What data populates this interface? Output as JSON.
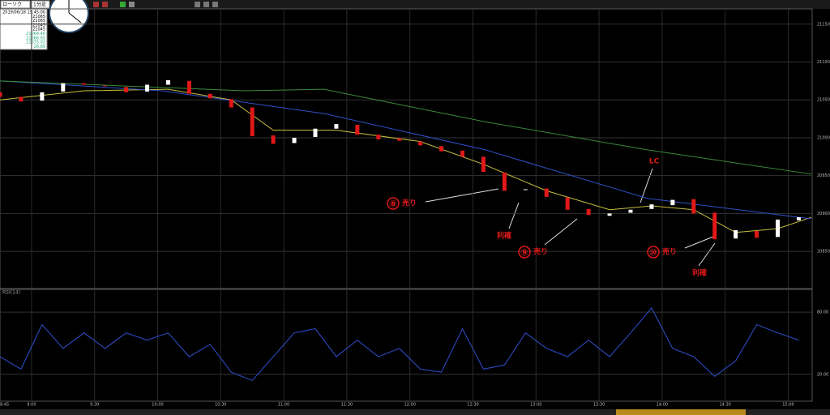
{
  "toolbar": {
    "chart_kind": "ローソク",
    "interval": "1分足"
  },
  "info": [
    "2019/06/18 15:45:00",
    "21065",
    "21065",
    "21045",
    "21045",
    "21064.40",
    "21066.65",
    "21075.02",
    "26.89"
  ],
  "chart_data": [
    {
      "type": "candlestick",
      "x": [
        0,
        10,
        20,
        30,
        40,
        50,
        60,
        70,
        80,
        90,
        100,
        110,
        120,
        130,
        140,
        150,
        160,
        170,
        180,
        190,
        200,
        210,
        220,
        230,
        240,
        250,
        260,
        270,
        280,
        290,
        300,
        310,
        320,
        330,
        340,
        350,
        360,
        370,
        380
      ],
      "open": [
        21060,
        21054,
        21049,
        21061,
        21072,
        21069,
        21067,
        21061,
        21070,
        21075,
        21058,
        21051,
        21040,
        21003,
        20993,
        21001,
        21012,
        21017,
        21004,
        20999,
        20995,
        20989,
        20983,
        20975,
        20954,
        20931,
        20933,
        20921,
        20906,
        20897,
        20901,
        20906,
        20911,
        20919,
        20901,
        20867,
        20877,
        20869,
        20891
      ],
      "close": [
        21054,
        21048,
        21060,
        21072,
        21070,
        21068,
        21060,
        21070,
        21076,
        21058,
        21052,
        21040,
        21002,
        20992,
        21000,
        21012,
        21018,
        21004,
        20998,
        20996,
        20990,
        20982,
        20975,
        20955,
        20930,
        20932,
        20922,
        20905,
        20898,
        20900,
        20905,
        20912,
        20918,
        20900,
        20866,
        20878,
        20868,
        20892,
        20895
      ],
      "up_color": "#ffffff",
      "down_color": "#e01818",
      "lines": [
        {
          "color": "#c8c040",
          "x": [
            0,
            40,
            80,
            110,
            130,
            160,
            200,
            230,
            260,
            290,
            310,
            330,
            350,
            370,
            386
          ],
          "values": [
            21050,
            21062,
            21064,
            21050,
            21010,
            21010,
            20995,
            20965,
            20930,
            20905,
            20910,
            20905,
            20875,
            20880,
            20895
          ]
        },
        {
          "color": "#3050c8",
          "x": [
            0,
            77,
            154,
            231,
            308,
            386
          ],
          "values": [
            21075,
            21062,
            21032,
            20984,
            20920,
            20893
          ]
        },
        {
          "color": "#3a8a3a",
          "x": [
            0,
            116,
            154,
            231,
            308,
            386
          ],
          "values": [
            21075,
            21062,
            21064,
            21021,
            20984,
            20952
          ]
        }
      ],
      "annotations": [
        {
          "number": "⑧",
          "text": "売り"
        },
        {
          "text": "利確"
        },
        {
          "number": "⑨",
          "text": "売り"
        },
        {
          "text": "LC"
        },
        {
          "number": "⑩",
          "text": "売り"
        },
        {
          "text": "利確"
        }
      ],
      "xlim": [
        0,
        386
      ],
      "xticks": [
        {
          "value": 0,
          "label": "8:45"
        },
        {
          "value": 15,
          "label": "9:00"
        },
        {
          "value": 45,
          "label": "9:30"
        },
        {
          "value": 75,
          "label": "10:00"
        },
        {
          "value": 105,
          "label": "10:30"
        },
        {
          "value": 135,
          "label": "11:00"
        },
        {
          "value": 165,
          "label": "11:30"
        },
        {
          "value": 195,
          "label": "12:00"
        },
        {
          "value": 225,
          "label": "12:30"
        },
        {
          "value": 255,
          "label": "13:00"
        },
        {
          "value": 285,
          "label": "13:30"
        },
        {
          "value": 315,
          "label": "14:00"
        },
        {
          "value": 345,
          "label": "14:30"
        },
        {
          "value": 375,
          "label": "15:00"
        }
      ],
      "ylim": [
        20802,
        21169
      ],
      "yticks": [
        21150,
        21100,
        21050,
        21000,
        20950,
        20900,
        20850
      ],
      "grid": true
    },
    {
      "type": "line",
      "title": "RSI(14)",
      "x": [
        0,
        10,
        20,
        30,
        40,
        50,
        60,
        70,
        80,
        90,
        100,
        110,
        120,
        130,
        140,
        150,
        160,
        170,
        180,
        190,
        200,
        210,
        220,
        230,
        240,
        250,
        260,
        270,
        280,
        290,
        300,
        310,
        320,
        330,
        340,
        350,
        360,
        370,
        380
      ],
      "series": [
        {
          "color": "#3050d0",
          "values": [
            37,
            25,
            68,
            45,
            60,
            45,
            60,
            53,
            60,
            37,
            49,
            22,
            14,
            37,
            60,
            64,
            37,
            53,
            37,
            45,
            25,
            22,
            64,
            25,
            29,
            60,
            45,
            37,
            53,
            37,
            60,
            84,
            45,
            37,
            18,
            33,
            68,
            60,
            53
          ]
        }
      ],
      "xlim": [
        0,
        386
      ],
      "ylim": [
        -6,
        102
      ],
      "yticks": [
        {
          "value": 80,
          "label": "80.00"
        },
        {
          "value": 20,
          "label": "20.00"
        }
      ],
      "grid": true
    }
  ]
}
